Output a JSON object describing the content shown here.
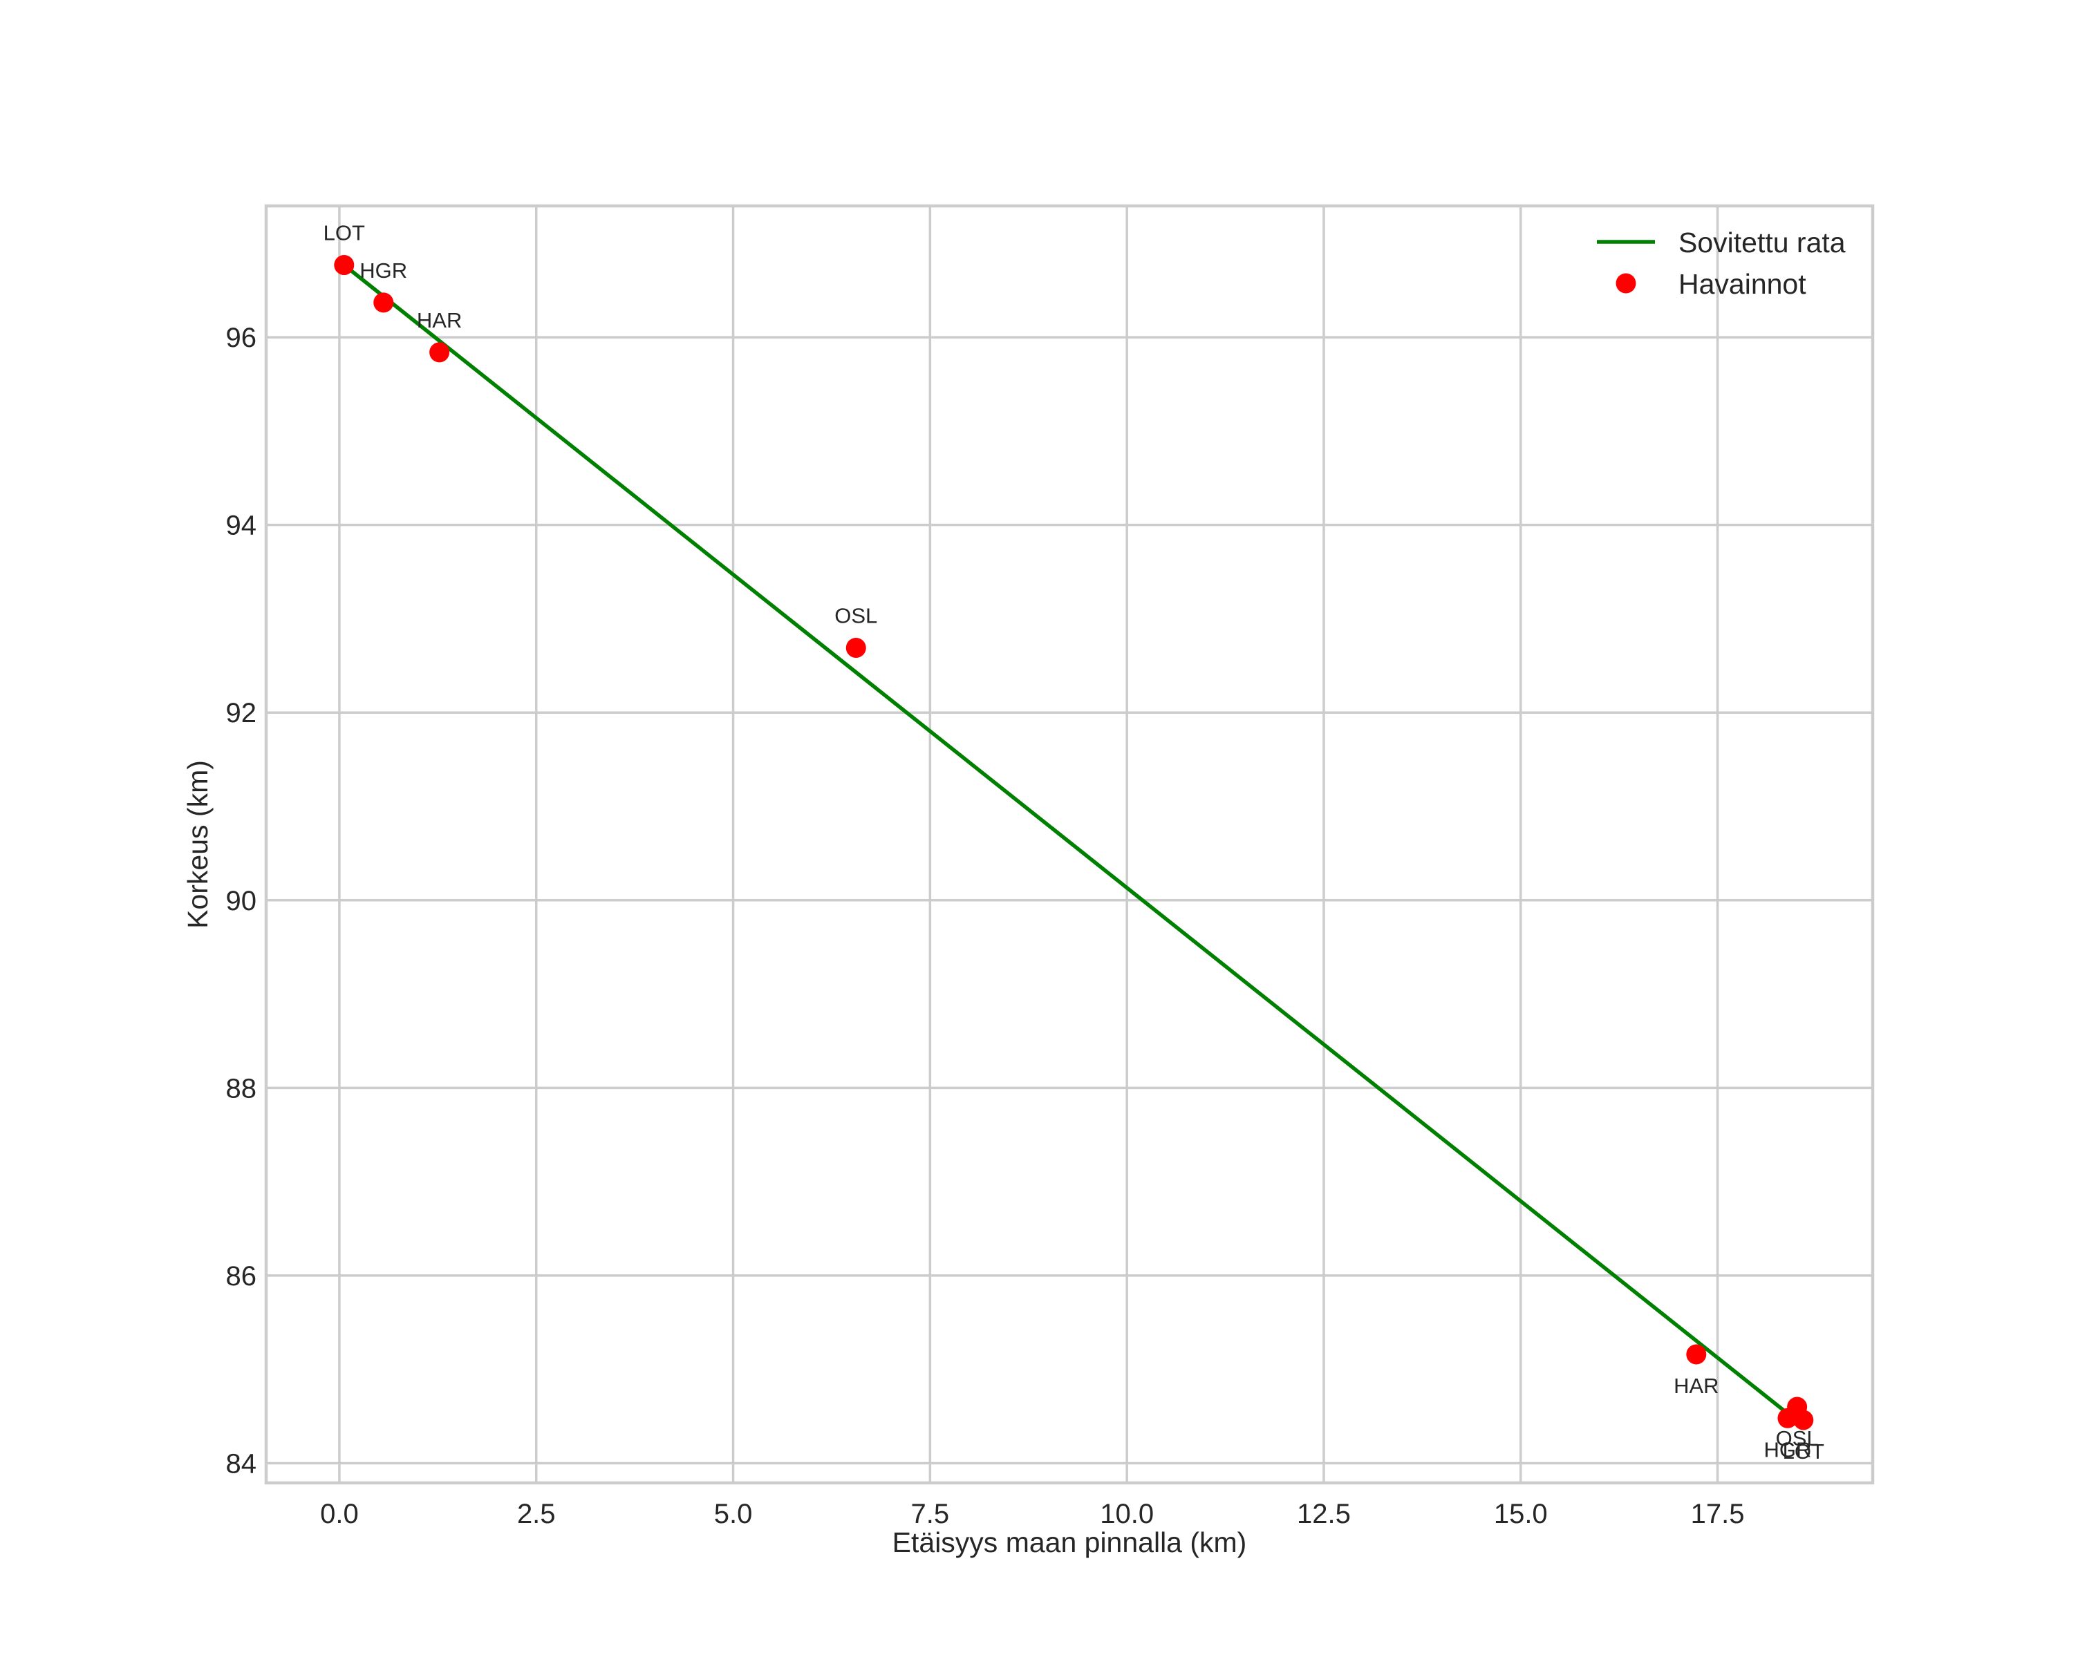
{
  "chart_data": {
    "type": "scatter",
    "title": "",
    "xlabel": "Etäisyys maan pinnalla (km)",
    "ylabel": "Korkeus (km)",
    "xlim": [
      -0.93,
      19.47
    ],
    "ylim": [
      83.79,
      97.4
    ],
    "grid": true,
    "legend_position": "upper right",
    "x_ticks": [
      0.0,
      2.5,
      5.0,
      7.5,
      10.0,
      12.5,
      15.0,
      17.5
    ],
    "x_tick_labels": [
      "0.0",
      "2.5",
      "5.0",
      "7.5",
      "10.0",
      "12.5",
      "15.0",
      "17.5"
    ],
    "y_ticks": [
      84,
      86,
      88,
      90,
      92,
      94,
      96
    ],
    "y_tick_labels": [
      "84",
      "86",
      "88",
      "90",
      "92",
      "94",
      "96"
    ],
    "series": [
      {
        "name": "Sovitettu rata",
        "kind": "line",
        "color": "#008000",
        "x": [
          0.06,
          18.36
        ],
        "y": [
          96.77,
          84.55
        ]
      },
      {
        "name": "Havainnot",
        "kind": "scatter",
        "color": "#ff0000",
        "points": [
          {
            "label": "LOT",
            "x": 0.06,
            "y": 96.77,
            "label_pos": "above"
          },
          {
            "label": "HGR",
            "x": 0.56,
            "y": 96.37,
            "label_pos": "above"
          },
          {
            "label": "HAR",
            "x": 1.27,
            "y": 95.84,
            "label_pos": "above"
          },
          {
            "label": "OSL",
            "x": 6.56,
            "y": 92.69,
            "label_pos": "above"
          },
          {
            "label": "HAR",
            "x": 17.23,
            "y": 85.16,
            "label_pos": "below"
          },
          {
            "label": "OSL",
            "x": 18.51,
            "y": 84.6,
            "label_pos": "below"
          },
          {
            "label": "HGR",
            "x": 18.39,
            "y": 84.48,
            "label_pos": "below"
          },
          {
            "label": "LOT",
            "x": 18.59,
            "y": 84.46,
            "label_pos": "below"
          }
        ]
      }
    ]
  },
  "legend": {
    "items": [
      {
        "label": "Sovitettu rata",
        "marker": "line",
        "color": "#008000"
      },
      {
        "label": "Havainnot",
        "marker": "dot",
        "color": "#ff0000"
      }
    ]
  },
  "colors": {
    "grid": "#cccccc",
    "text": "#262626",
    "fit_line": "#008000",
    "observation": "#ff0000"
  }
}
